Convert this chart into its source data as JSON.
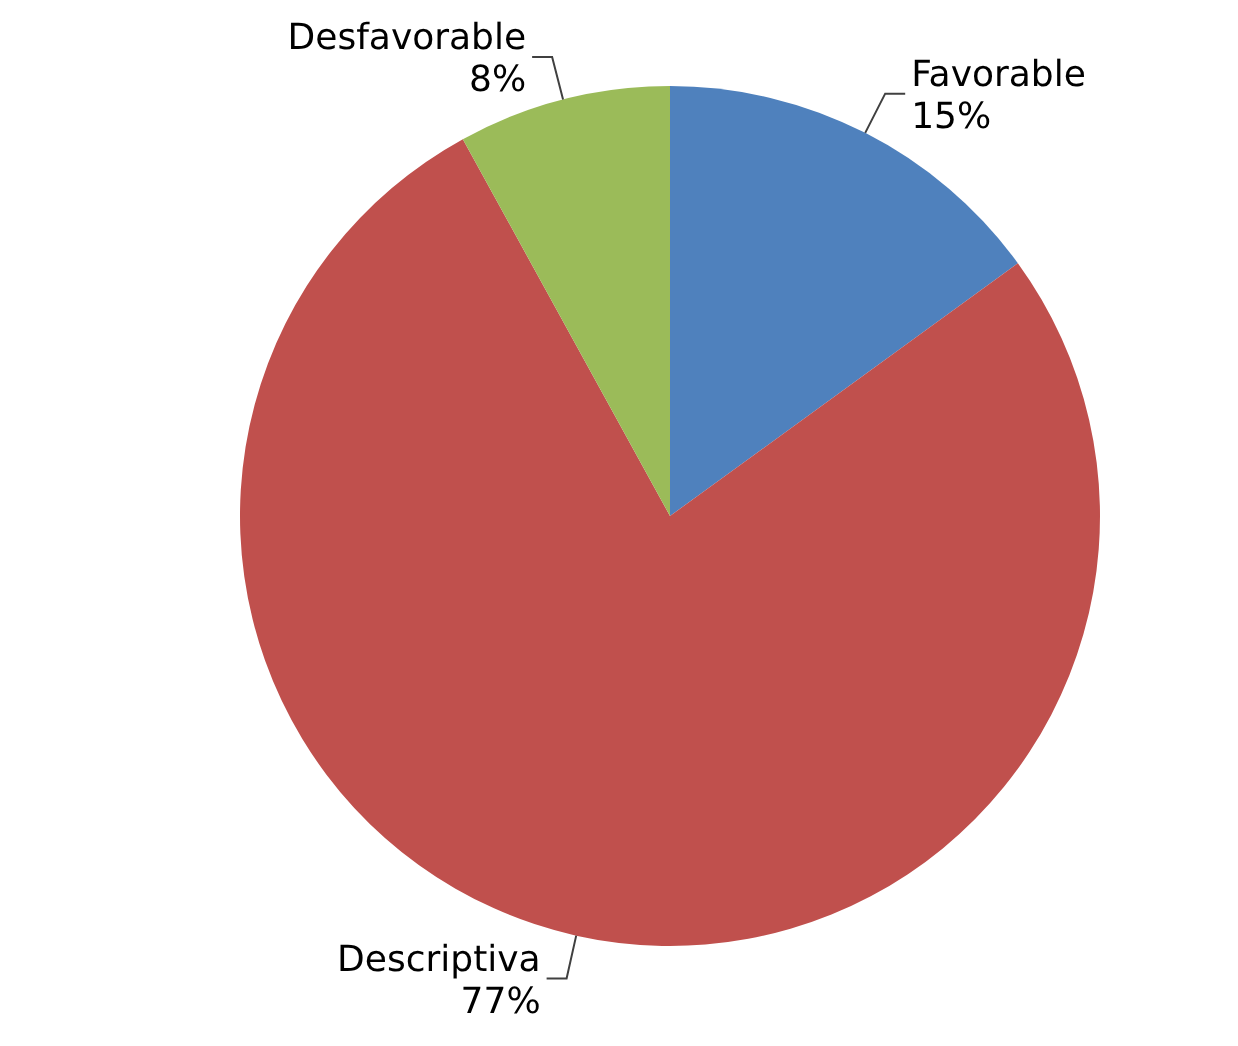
{
  "chart_data": {
    "type": "pie",
    "categories": [
      "Favorable",
      "Descriptiva",
      "Desfavorable"
    ],
    "values": [
      15,
      77,
      8
    ],
    "colors": [
      "#4f81bd",
      "#c0504d",
      "#9bbb59"
    ],
    "value_labels": [
      "15%",
      "77%",
      "8%"
    ]
  }
}
